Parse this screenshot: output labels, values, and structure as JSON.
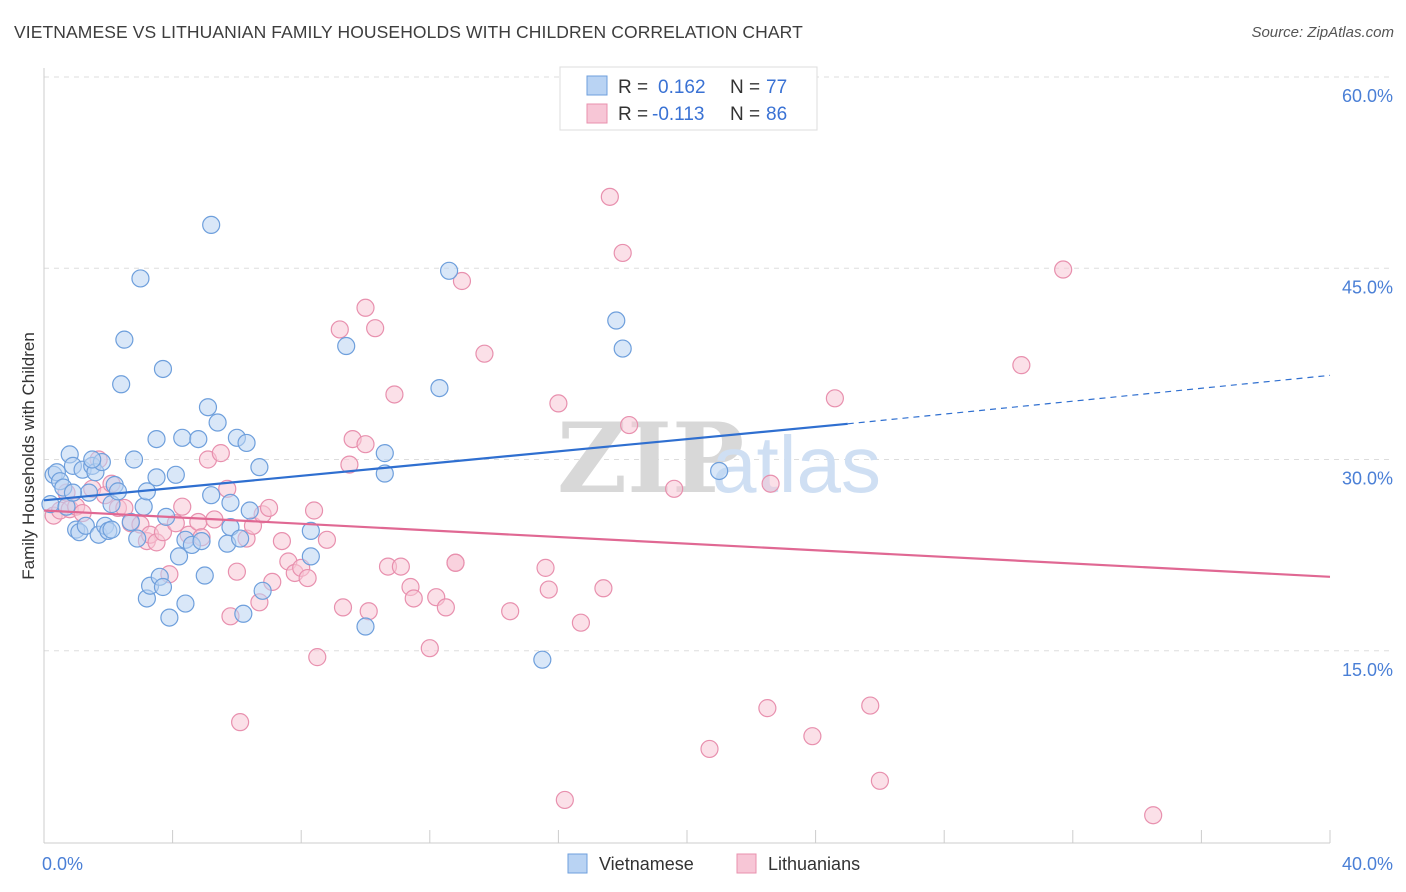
{
  "title": "VIETNAMESE VS LITHUANIAN FAMILY HOUSEHOLDS WITH CHILDREN CORRELATION CHART",
  "source": "Source: ZipAtlas.com",
  "watermark": {
    "zip": "ZIP",
    "atlas": "atlas"
  },
  "colors": {
    "blue_fill": "#b9d3f3",
    "blue_stroke": "#6e9fdc",
    "blue_line": "#2f6fd0",
    "pink_fill": "#f7c6d6",
    "pink_stroke": "#e890ae",
    "pink_line": "#e06893",
    "tick_text": "#4a7fd6",
    "grid": "#dddddd"
  },
  "legend": {
    "rows": [
      {
        "r_label": "R =",
        "r_value": "0.162",
        "n_label": "N =",
        "n_value": "77",
        "series": "blue"
      },
      {
        "r_label": "R =",
        "r_value": "-0.113",
        "n_label": "N =",
        "n_value": "86",
        "series": "pink"
      }
    ]
  },
  "bottom_legend": [
    "Vietnamese",
    "Lithuanians"
  ],
  "chart_data": {
    "type": "scatter",
    "title": "VIETNAMESE VS LITHUANIAN FAMILY HOUSEHOLDS WITH CHILDREN CORRELATION CHART",
    "xlabel": "",
    "ylabel": "Family Households with Children",
    "xlim": [
      0,
      40
    ],
    "ylim": [
      0,
      60
    ],
    "x_tick_labels": [
      "0.0%",
      "40.0%"
    ],
    "y_ticks": [
      15,
      30,
      45,
      60
    ],
    "y_tick_labels": [
      "15.0%",
      "30.0%",
      "45.0%",
      "60.0%"
    ],
    "grid": true,
    "series": [
      {
        "name": "Vietnamese",
        "color": "blue",
        "trend": {
          "x0": 0,
          "y0": 26.8,
          "x1": 25,
          "y1": 32.8,
          "x_dashed_end": 40,
          "y_dashed_end": 36.6
        },
        "points": [
          [
            0.2,
            26.5
          ],
          [
            0.3,
            28.8
          ],
          [
            0.4,
            29.0
          ],
          [
            0.5,
            28.3
          ],
          [
            0.6,
            27.8
          ],
          [
            0.7,
            26.3
          ],
          [
            0.8,
            30.4
          ],
          [
            0.9,
            29.5
          ],
          [
            1.0,
            24.5
          ],
          [
            1.1,
            24.3
          ],
          [
            1.2,
            29.2
          ],
          [
            1.3,
            24.8
          ],
          [
            1.4,
            27.4
          ],
          [
            1.5,
            29.5
          ],
          [
            1.6,
            29.0
          ],
          [
            1.7,
            24.1
          ],
          [
            1.8,
            29.8
          ],
          [
            1.9,
            24.8
          ],
          [
            2.0,
            24.4
          ],
          [
            2.1,
            26.5
          ],
          [
            2.2,
            28.0
          ],
          [
            2.3,
            27.5
          ],
          [
            2.4,
            35.9
          ],
          [
            2.5,
            39.4
          ],
          [
            2.7,
            25.1
          ],
          [
            2.8,
            30.0
          ],
          [
            2.9,
            23.8
          ],
          [
            3.0,
            44.2
          ],
          [
            3.1,
            26.3
          ],
          [
            3.2,
            19.1
          ],
          [
            3.2,
            27.5
          ],
          [
            3.3,
            20.1
          ],
          [
            3.5,
            28.6
          ],
          [
            3.5,
            31.6
          ],
          [
            3.6,
            20.8
          ],
          [
            3.7,
            37.1
          ],
          [
            3.8,
            25.5
          ],
          [
            3.9,
            17.6
          ],
          [
            4.1,
            28.8
          ],
          [
            4.2,
            22.4
          ],
          [
            4.3,
            31.7
          ],
          [
            4.4,
            23.7
          ],
          [
            4.4,
            18.7
          ],
          [
            4.6,
            23.3
          ],
          [
            4.8,
            31.6
          ],
          [
            4.9,
            23.6
          ],
          [
            5.0,
            20.9
          ],
          [
            5.1,
            34.1
          ],
          [
            5.2,
            27.2
          ],
          [
            5.2,
            48.4
          ],
          [
            5.4,
            32.9
          ],
          [
            5.7,
            23.4
          ],
          [
            5.8,
            24.7
          ],
          [
            5.8,
            26.6
          ],
          [
            6.0,
            31.7
          ],
          [
            6.1,
            23.8
          ],
          [
            6.2,
            17.9
          ],
          [
            6.3,
            31.3
          ],
          [
            6.4,
            26.0
          ],
          [
            6.7,
            29.4
          ],
          [
            6.8,
            19.7
          ],
          [
            8.3,
            22.4
          ],
          [
            8.3,
            24.4
          ],
          [
            9.4,
            38.9
          ],
          [
            10.0,
            16.9
          ],
          [
            10.6,
            30.5
          ],
          [
            10.6,
            28.9
          ],
          [
            12.3,
            35.6
          ],
          [
            12.6,
            44.8
          ],
          [
            15.5,
            14.3
          ],
          [
            17.8,
            40.9
          ],
          [
            18.0,
            38.7
          ],
          [
            21.0,
            29.1
          ],
          [
            1.5,
            30.0
          ],
          [
            0.9,
            27.4
          ],
          [
            2.1,
            24.5
          ],
          [
            3.7,
            20.0
          ]
        ]
      },
      {
        "name": "Lithuanians",
        "color": "pink",
        "trend": {
          "x0": 0,
          "y0": 26.0,
          "x1": 40,
          "y1": 20.8
        },
        "points": [
          [
            0.3,
            25.6
          ],
          [
            0.5,
            26.0
          ],
          [
            0.7,
            27.4
          ],
          [
            0.8,
            26.1
          ],
          [
            1.0,
            26.3
          ],
          [
            1.2,
            25.8
          ],
          [
            1.5,
            27.7
          ],
          [
            1.7,
            30.0
          ],
          [
            1.9,
            27.2
          ],
          [
            2.1,
            28.1
          ],
          [
            2.3,
            26.2
          ],
          [
            2.5,
            26.2
          ],
          [
            2.7,
            25.0
          ],
          [
            3.0,
            24.9
          ],
          [
            3.2,
            23.6
          ],
          [
            3.3,
            24.1
          ],
          [
            3.5,
            23.5
          ],
          [
            3.7,
            24.3
          ],
          [
            3.9,
            21.0
          ],
          [
            4.1,
            25.0
          ],
          [
            4.3,
            26.3
          ],
          [
            4.5,
            24.1
          ],
          [
            4.8,
            25.1
          ],
          [
            4.9,
            23.9
          ],
          [
            5.1,
            30.0
          ],
          [
            5.3,
            25.3
          ],
          [
            5.5,
            30.5
          ],
          [
            5.7,
            27.7
          ],
          [
            5.8,
            17.7
          ],
          [
            6.0,
            21.2
          ],
          [
            6.1,
            9.4
          ],
          [
            6.3,
            23.8
          ],
          [
            6.5,
            24.8
          ],
          [
            6.7,
            18.8
          ],
          [
            6.8,
            25.7
          ],
          [
            7.0,
            26.2
          ],
          [
            7.1,
            20.4
          ],
          [
            7.4,
            23.6
          ],
          [
            7.6,
            22.0
          ],
          [
            7.8,
            21.1
          ],
          [
            8.0,
            21.5
          ],
          [
            8.2,
            20.7
          ],
          [
            8.4,
            26.0
          ],
          [
            8.5,
            14.5
          ],
          [
            8.8,
            23.7
          ],
          [
            9.2,
            40.2
          ],
          [
            9.3,
            18.4
          ],
          [
            9.5,
            29.6
          ],
          [
            9.6,
            31.6
          ],
          [
            10.0,
            31.2
          ],
          [
            10.0,
            41.9
          ],
          [
            10.1,
            18.1
          ],
          [
            10.3,
            40.3
          ],
          [
            10.7,
            21.6
          ],
          [
            10.9,
            35.1
          ],
          [
            11.1,
            21.6
          ],
          [
            11.4,
            20.0
          ],
          [
            11.5,
            19.1
          ],
          [
            12.0,
            15.2
          ],
          [
            12.2,
            19.2
          ],
          [
            12.5,
            18.4
          ],
          [
            12.8,
            21.9
          ],
          [
            13.0,
            44.0
          ],
          [
            13.7,
            38.3
          ],
          [
            14.5,
            18.1
          ],
          [
            15.6,
            21.5
          ],
          [
            15.7,
            19.8
          ],
          [
            16.0,
            34.4
          ],
          [
            16.2,
            3.3
          ],
          [
            16.7,
            17.2
          ],
          [
            17.4,
            19.9
          ],
          [
            17.6,
            50.6
          ],
          [
            18.0,
            46.2
          ],
          [
            18.2,
            32.7
          ],
          [
            19.6,
            27.7
          ],
          [
            20.7,
            7.3
          ],
          [
            22.5,
            10.5
          ],
          [
            22.6,
            28.1
          ],
          [
            23.9,
            8.3
          ],
          [
            24.6,
            34.8
          ],
          [
            25.7,
            10.7
          ],
          [
            26.0,
            4.8
          ],
          [
            30.4,
            37.4
          ],
          [
            31.7,
            44.9
          ],
          [
            34.5,
            2.1
          ],
          [
            12.8,
            21.9
          ]
        ]
      }
    ]
  }
}
